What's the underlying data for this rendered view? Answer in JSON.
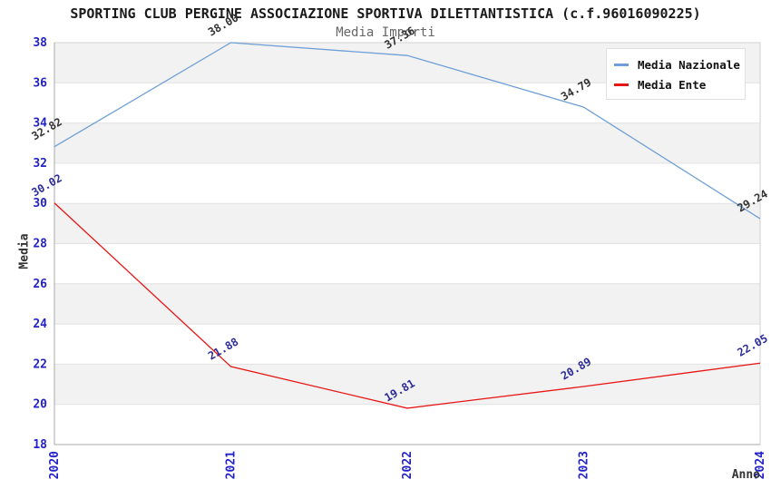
{
  "chart_data": {
    "type": "line",
    "title": "SPORTING CLUB PERGINE ASSOCIAZIONE SPORTIVA DILETTANTISTICA (c.f.96016090225)",
    "subtitle": "Media Importi",
    "xlabel": "Anno",
    "ylabel": "Media",
    "x": [
      2020,
      2021,
      2022,
      2023,
      2024
    ],
    "ylim": [
      18,
      38
    ],
    "ytick_step": 2,
    "grid": "horizontal",
    "legend_position": "top-right",
    "series": [
      {
        "name": "Media Nazionale",
        "color": "#6f9fd6",
        "label_color": "#333333",
        "values": [
          32.82,
          38.0,
          37.36,
          34.79,
          29.24
        ]
      },
      {
        "name": "Media Ente",
        "color": "#e81515",
        "label_color": "#2b2b99",
        "values": [
          30.02,
          21.88,
          19.81,
          20.89,
          22.05
        ]
      }
    ],
    "colors": {
      "tick_label": "#2222cc",
      "band_fill": "#f2f2f2",
      "gridline": "#e2e2e2",
      "plot_border": "#d2d2d2",
      "axis_line": "#a8a8a8"
    }
  }
}
